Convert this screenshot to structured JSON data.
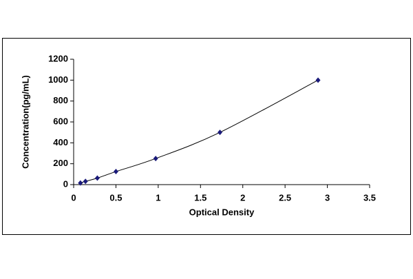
{
  "chart_data": {
    "type": "scatter",
    "x_label": "Optical Density",
    "y_label": "Concentration(pg/mL)",
    "x": [
      0.08,
      0.14,
      0.28,
      0.5,
      0.97,
      1.73,
      2.89
    ],
    "values": [
      15.6,
      31.25,
      62.5,
      125,
      250,
      500,
      1000
    ],
    "color": "#1a1a7a",
    "line_color": "#000000",
    "smooth_line": true,
    "xlim": [
      0,
      3.5
    ],
    "xticks": [
      0,
      0.5,
      1,
      1.5,
      2,
      2.5,
      3,
      3.5
    ],
    "ylim": [
      0,
      1200
    ],
    "yticks": [
      0,
      200,
      400,
      600,
      800,
      1000,
      1200
    ],
    "grid": false
  }
}
